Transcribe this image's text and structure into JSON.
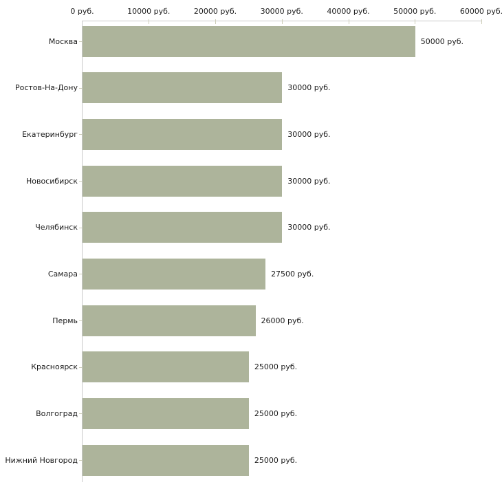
{
  "chart_data": {
    "type": "bar",
    "orientation": "horizontal",
    "title": "",
    "xlabel": "",
    "ylabel": "",
    "categories": [
      "Москва",
      "Ростов-На-Дону",
      "Екатеринбург",
      "Новосибирск",
      "Челябинск",
      "Самара",
      "Пермь",
      "Красноярск",
      "Волгоград",
      "Нижний Новгород"
    ],
    "values": [
      50000,
      30000,
      30000,
      30000,
      30000,
      27500,
      26000,
      25000,
      25000,
      25000
    ],
    "value_labels": [
      "50000 руб.",
      "30000 руб.",
      "30000 руб.",
      "30000 руб.",
      "30000 руб.",
      "27500 руб.",
      "26000 руб.",
      "25000 руб.",
      "25000 руб.",
      "25000 руб."
    ],
    "unit": "руб.",
    "xlim": [
      0,
      60000
    ],
    "x_ticks": [
      0,
      10000,
      20000,
      30000,
      40000,
      50000,
      60000
    ],
    "x_tick_labels": [
      "0 руб.",
      "10000 руб.",
      "20000 руб.",
      "30000 руб.",
      "40000 руб.",
      "50000 руб.",
      "60000 руб."
    ],
    "axis_position": "top",
    "grid": false,
    "legend": "none",
    "colors": {
      "bar": "#adb49b",
      "axis_line": "#c8c8c8",
      "tick": "#cdcdb8",
      "text": "#1a1a1a",
      "background": "#ffffff"
    }
  }
}
